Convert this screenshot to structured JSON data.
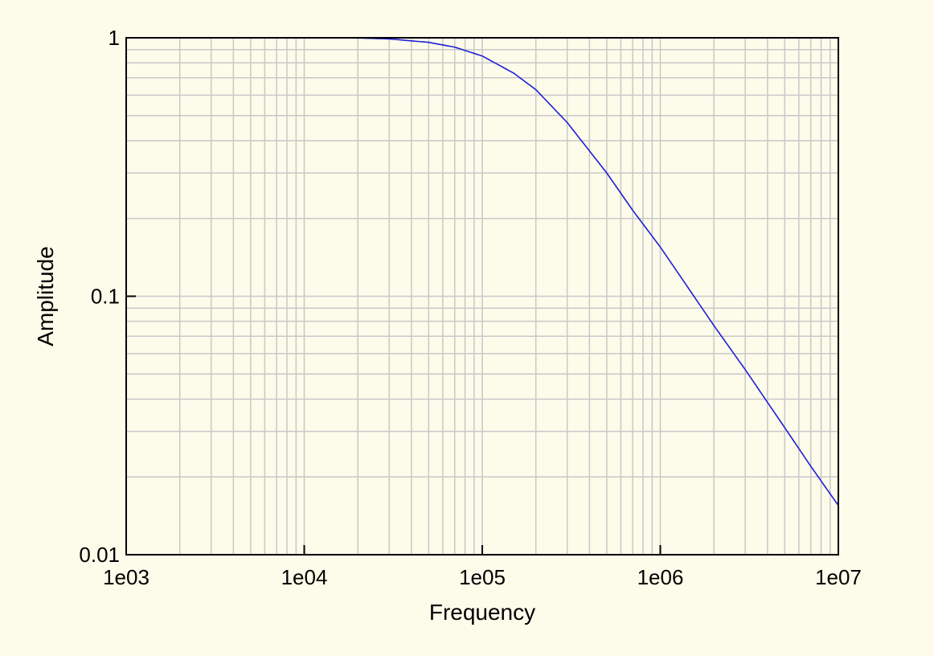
{
  "chart_data": {
    "type": "line",
    "title": "",
    "xlabel": "Frequency",
    "ylabel": "Amplitude",
    "xscale": "log",
    "yscale": "log",
    "xlim": [
      1000,
      10000000
    ],
    "ylim": [
      0.01,
      1
    ],
    "grid": true,
    "legend": "none",
    "x_ticks": [
      {
        "value": 1000,
        "label": "1e03"
      },
      {
        "value": 10000,
        "label": "1e04"
      },
      {
        "value": 100000,
        "label": "1e05"
      },
      {
        "value": 1000000,
        "label": "1e06"
      },
      {
        "value": 10000000,
        "label": "1e07"
      }
    ],
    "y_ticks": [
      {
        "value": 0.01,
        "label": "0.01"
      },
      {
        "value": 0.1,
        "label": "0.1"
      },
      {
        "value": 1,
        "label": "1"
      }
    ],
    "series": [
      {
        "color": "#1f1fd6",
        "x": [
          1000,
          5000,
          10000,
          20000,
          30000,
          50000,
          70000,
          100000,
          150000,
          200000,
          300000,
          500000,
          700000,
          1000000,
          1500000,
          2000000,
          3000000,
          5000000,
          7000000,
          10000000
        ],
        "y": [
          1,
          1,
          1,
          0.998,
          0.99,
          0.96,
          0.92,
          0.85,
          0.73,
          0.63,
          0.47,
          0.3,
          0.215,
          0.155,
          0.103,
          0.077,
          0.052,
          0.031,
          0.022,
          0.0155
        ]
      }
    ]
  },
  "colors": {
    "background": "#fdfbea",
    "plot_background": "#fdfbea",
    "grid": "#c8c8c8",
    "axis": "#000000"
  }
}
